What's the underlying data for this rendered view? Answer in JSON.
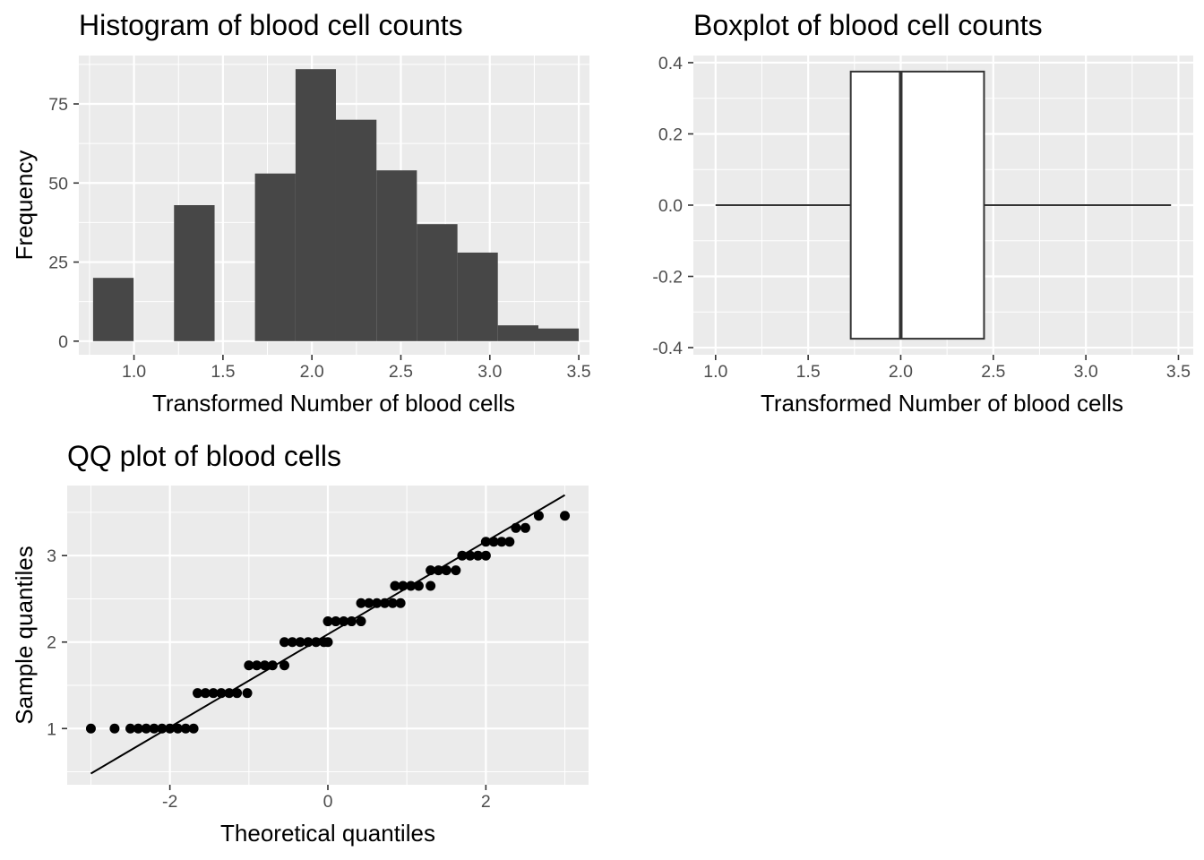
{
  "chart_data": [
    {
      "type": "bar",
      "title": "Histogram of blood cell counts",
      "xlabel": "Transformed Number of blood cells",
      "ylabel": "Frequency",
      "xlim": [
        0.69,
        3.56
      ],
      "ylim": [
        -4.3,
        90.3
      ],
      "x_ticks": [
        1.0,
        1.5,
        2.0,
        2.5,
        3.0,
        3.5
      ],
      "x_tick_labels": [
        "1.0",
        "1.5",
        "2.0",
        "2.5",
        "3.0",
        "3.5"
      ],
      "y_ticks": [
        0,
        25,
        50,
        75
      ],
      "y_tick_labels": [
        "0",
        "25",
        "50",
        "75"
      ],
      "bins": [
        {
          "x0": 0.77,
          "x1": 0.998,
          "count": 20
        },
        {
          "x0": 0.998,
          "x1": 1.225,
          "count": 0
        },
        {
          "x0": 1.225,
          "x1": 1.453,
          "count": 43
        },
        {
          "x0": 1.453,
          "x1": 1.68,
          "count": 0
        },
        {
          "x0": 1.68,
          "x1": 1.908,
          "count": 53
        },
        {
          "x0": 1.908,
          "x1": 2.135,
          "count": 86
        },
        {
          "x0": 2.135,
          "x1": 2.363,
          "count": 70
        },
        {
          "x0": 2.363,
          "x1": 2.59,
          "count": 54
        },
        {
          "x0": 2.59,
          "x1": 2.818,
          "count": 37
        },
        {
          "x0": 2.818,
          "x1": 3.045,
          "count": 28
        },
        {
          "x0": 3.045,
          "x1": 3.273,
          "count": 5
        },
        {
          "x0": 3.273,
          "x1": 3.5,
          "count": 4
        }
      ],
      "grid": true
    },
    {
      "type": "boxplot",
      "title": "Boxplot of blood cell counts",
      "xlabel": "Transformed Number of blood cells",
      "ylabel": "",
      "xlim": [
        0.88,
        3.58
      ],
      "ylim": [
        -0.42,
        0.42
      ],
      "x_ticks": [
        1.0,
        1.5,
        2.0,
        2.5,
        3.0,
        3.5
      ],
      "x_tick_labels": [
        "1.0",
        "1.5",
        "2.0",
        "2.5",
        "3.0",
        "3.5"
      ],
      "y_ticks": [
        -0.4,
        -0.2,
        0.0,
        0.2,
        0.4
      ],
      "y_tick_labels": [
        "-0.4",
        "-0.2",
        "0.0",
        "0.2",
        "0.4"
      ],
      "box": {
        "min": 1.0,
        "q1": 1.73,
        "median": 2.0,
        "q3": 2.45,
        "max": 3.46,
        "ymin": -0.375,
        "ymax": 0.375
      },
      "grid": true
    },
    {
      "type": "scatter",
      "title": "QQ plot of blood cells",
      "xlabel": "Theoretical quantiles",
      "ylabel": "Sample quantiles",
      "xlim": [
        -3.3,
        3.3
      ],
      "ylim": [
        0.35,
        3.81
      ],
      "x_ticks": [
        -2,
        0,
        2
      ],
      "x_tick_labels": [
        "-2",
        "0",
        "2"
      ],
      "y_ticks": [
        1,
        2,
        3
      ],
      "y_tick_labels": [
        "1",
        "2",
        "3"
      ],
      "points": [
        [
          -3.0,
          1.0
        ],
        [
          -2.7,
          1.0
        ],
        [
          -2.5,
          1.0
        ],
        [
          -2.4,
          1.0
        ],
        [
          -2.3,
          1.0
        ],
        [
          -2.2,
          1.0
        ],
        [
          -2.1,
          1.0
        ],
        [
          -2.0,
          1.0
        ],
        [
          -1.9,
          1.0
        ],
        [
          -1.8,
          1.0
        ],
        [
          -1.7,
          1.0
        ],
        [
          -1.65,
          1.41
        ],
        [
          -1.55,
          1.41
        ],
        [
          -1.45,
          1.41
        ],
        [
          -1.35,
          1.41
        ],
        [
          -1.25,
          1.41
        ],
        [
          -1.15,
          1.41
        ],
        [
          -1.02,
          1.41
        ],
        [
          -1.0,
          1.73
        ],
        [
          -0.9,
          1.73
        ],
        [
          -0.8,
          1.73
        ],
        [
          -0.7,
          1.73
        ],
        [
          -0.55,
          1.73
        ],
        [
          -0.55,
          2.0
        ],
        [
          -0.45,
          2.0
        ],
        [
          -0.35,
          2.0
        ],
        [
          -0.25,
          2.0
        ],
        [
          -0.15,
          2.0
        ],
        [
          -0.05,
          2.0
        ],
        [
          0.0,
          2.0
        ],
        [
          0.0,
          2.24
        ],
        [
          0.1,
          2.24
        ],
        [
          0.2,
          2.24
        ],
        [
          0.3,
          2.24
        ],
        [
          0.42,
          2.24
        ],
        [
          0.42,
          2.45
        ],
        [
          0.52,
          2.45
        ],
        [
          0.62,
          2.45
        ],
        [
          0.72,
          2.45
        ],
        [
          0.82,
          2.45
        ],
        [
          0.92,
          2.45
        ],
        [
          0.85,
          2.65
        ],
        [
          0.95,
          2.65
        ],
        [
          1.05,
          2.65
        ],
        [
          1.15,
          2.65
        ],
        [
          1.3,
          2.65
        ],
        [
          1.3,
          2.83
        ],
        [
          1.4,
          2.83
        ],
        [
          1.5,
          2.83
        ],
        [
          1.62,
          2.83
        ],
        [
          1.7,
          3.0
        ],
        [
          1.8,
          3.0
        ],
        [
          1.9,
          3.0
        ],
        [
          2.0,
          3.0
        ],
        [
          2.0,
          3.16
        ],
        [
          2.1,
          3.16
        ],
        [
          2.2,
          3.16
        ],
        [
          2.3,
          3.16
        ],
        [
          2.38,
          3.32
        ],
        [
          2.5,
          3.32
        ],
        [
          2.67,
          3.46
        ],
        [
          3.0,
          3.46
        ]
      ],
      "reference_line": {
        "x": [
          -3.0,
          3.0
        ],
        "y": [
          0.48,
          3.7
        ]
      },
      "grid": true
    }
  ]
}
